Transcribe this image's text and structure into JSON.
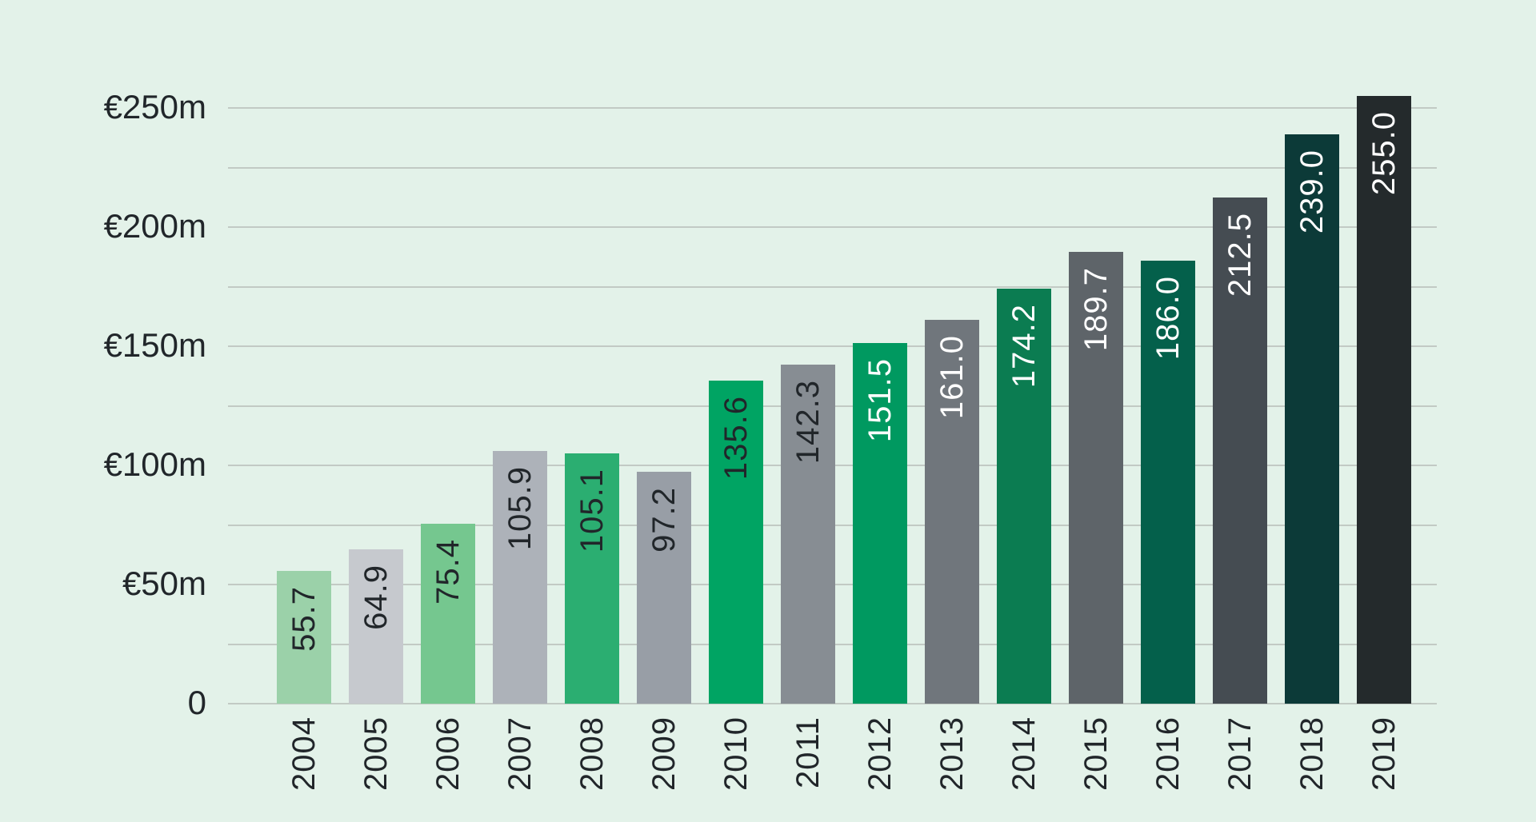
{
  "app": {
    "background_color": "#e3f2e9",
    "gridline_color": "#c2cac4",
    "axis_text_color": "#21262a"
  },
  "chart_data": {
    "type": "bar",
    "title": "",
    "xlabel": "",
    "ylabel": "",
    "categories": [
      "2004",
      "2005",
      "2006",
      "2007",
      "2008",
      "2009",
      "2010",
      "2011",
      "2012",
      "2013",
      "2014",
      "2015",
      "2016",
      "2017",
      "2018",
      "2019"
    ],
    "values": [
      55.7,
      64.9,
      75.4,
      105.9,
      105.1,
      97.2,
      135.6,
      142.3,
      151.5,
      161.0,
      174.2,
      189.7,
      186.0,
      212.5,
      239.0,
      255.0
    ],
    "value_labels": [
      "55.7",
      "64.9",
      "75.4",
      "105.9",
      "105.1",
      "97.2",
      "135.6",
      "142.3",
      "151.5",
      "161.0",
      "174.2",
      "189.7",
      "186.0",
      "212.5",
      "239.0",
      "255.0"
    ],
    "bar_colors": [
      "#9bd1a9",
      "#c6c9ce",
      "#75c78f",
      "#adb2b9",
      "#2bae71",
      "#989ea6",
      "#00a463",
      "#878d93",
      "#009960",
      "#70767c",
      "#0b7c51",
      "#5e6469",
      "#04604b",
      "#454c52",
      "#0c3a38",
      "#242a2c"
    ],
    "value_label_colors": [
      "#21262a",
      "#21262a",
      "#21262a",
      "#21262a",
      "#21262a",
      "#21262a",
      "#21262a",
      "#21262a",
      "#ffffff",
      "#ffffff",
      "#ffffff",
      "#ffffff",
      "#ffffff",
      "#ffffff",
      "#ffffff",
      "#ffffff"
    ],
    "value_label_rotation": -90,
    "category_label_rotation": -90,
    "y_axis": {
      "min": 0,
      "max": 250,
      "minor_grid_step": 25,
      "ticks": [
        {
          "value": 0,
          "label": "0"
        },
        {
          "value": 50,
          "label": "€50m"
        },
        {
          "value": 100,
          "label": "€100m"
        },
        {
          "value": 150,
          "label": "€150m"
        },
        {
          "value": 200,
          "label": "€200m"
        },
        {
          "value": 250,
          "label": "€250m"
        }
      ]
    },
    "grid": true,
    "legend": false
  }
}
